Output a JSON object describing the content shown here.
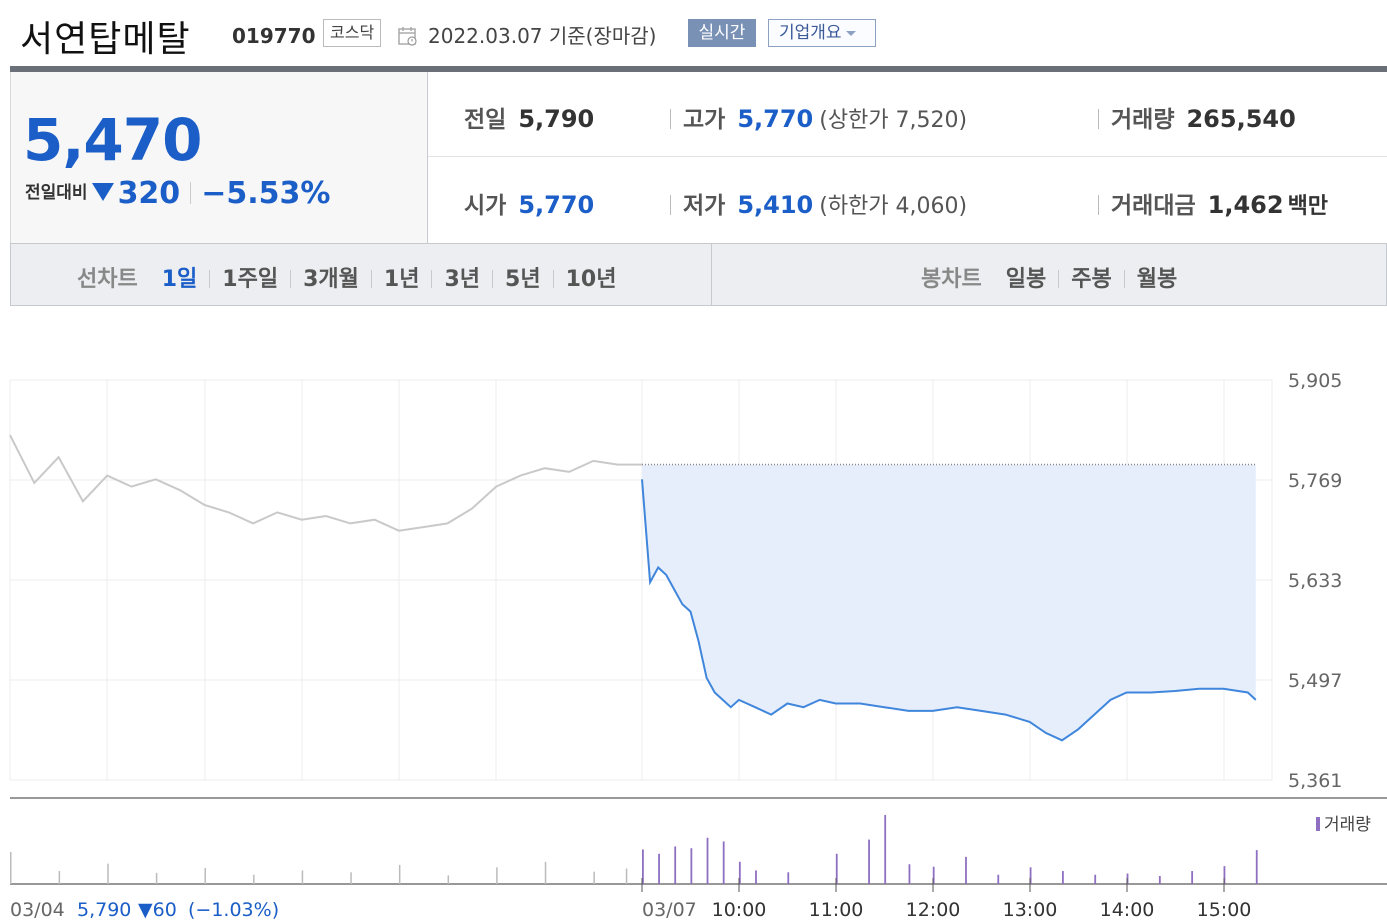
{
  "header": {
    "name": "서연탑메탈",
    "code": "019770",
    "market": "코스닥",
    "date": "2022.03.07  기준(장마감)",
    "realtime_label": "실시간",
    "company_label": "기업개요"
  },
  "summary": {
    "price": "5,470",
    "change_label": "전일대비",
    "change": "320",
    "change_rate": "−5.53%",
    "prev_close_label": "전일",
    "prev_close": "5,790",
    "high_label": "고가",
    "high": "5,770",
    "upper_limit": "(상한가 7,520)",
    "volume_label": "거래량",
    "volume": "265,540",
    "open_label": "시가",
    "open": "5,770",
    "low_label": "저가",
    "low": "5,410",
    "lower_limit": "(하한가 4,060)",
    "amount_label": "거래대금",
    "amount": "1,462",
    "amount_unit": "백만",
    "colors": {
      "down": "#1b5ec7",
      "fill": "#e6eefb",
      "today_line": "#3f86dc",
      "prev_line": "#c9c9c9",
      "volume_bar": "#8e6fc1"
    }
  },
  "tabs": {
    "line_title": "선차트",
    "line_items": [
      "1일",
      "1주일",
      "3개월",
      "1년",
      "3년",
      "5년",
      "10년"
    ],
    "line_active": "1일",
    "candle_title": "봉차트",
    "candle_items": [
      "일봉",
      "주봉",
      "월봉"
    ]
  },
  "chart_data": {
    "type": "line",
    "y_ticks": [
      "5,905",
      "5,769",
      "5,633",
      "5,497",
      "5,361"
    ],
    "ylim": [
      5361,
      5905
    ],
    "x_ticks": [
      "03/04",
      "03/07",
      "10:00",
      "11:00",
      "12:00",
      "13:00",
      "14:00",
      "15:00"
    ],
    "prev_day": {
      "date": "03/04",
      "close": "5,790",
      "change": "▼60",
      "change_rate": "(−1.03%)",
      "times": [
        "09:00",
        "09:15",
        "09:30",
        "09:45",
        "10:00",
        "10:15",
        "10:30",
        "10:45",
        "11:00",
        "11:15",
        "11:30",
        "11:45",
        "12:00",
        "12:15",
        "12:30",
        "12:45",
        "13:00",
        "13:15",
        "13:30",
        "13:45",
        "14:00",
        "14:15",
        "14:30",
        "14:45",
        "15:00",
        "15:15",
        "15:30"
      ],
      "values": [
        5830,
        5765,
        5800,
        5740,
        5775,
        5760,
        5770,
        5755,
        5735,
        5725,
        5710,
        5725,
        5715,
        5720,
        5710,
        5715,
        5700,
        5705,
        5710,
        5730,
        5760,
        5775,
        5785,
        5780,
        5795,
        5790,
        5790
      ]
    },
    "today": {
      "date": "03/07",
      "prev_close_ref": 5790,
      "times": [
        "09:00",
        "09:05",
        "09:10",
        "09:15",
        "09:20",
        "09:25",
        "09:30",
        "09:35",
        "09:40",
        "09:45",
        "09:50",
        "09:55",
        "10:00",
        "10:10",
        "10:20",
        "10:30",
        "10:40",
        "10:50",
        "11:00",
        "11:15",
        "11:30",
        "11:45",
        "12:00",
        "12:15",
        "12:30",
        "12:45",
        "13:00",
        "13:10",
        "13:20",
        "13:30",
        "13:40",
        "13:50",
        "14:00",
        "14:15",
        "14:30",
        "14:45",
        "15:00",
        "15:15",
        "15:20"
      ],
      "values": [
        5770,
        5630,
        5650,
        5640,
        5620,
        5600,
        5590,
        5550,
        5500,
        5480,
        5470,
        5460,
        5470,
        5460,
        5450,
        5465,
        5460,
        5470,
        5465,
        5465,
        5460,
        5455,
        5455,
        5460,
        5455,
        5450,
        5440,
        5425,
        5415,
        5430,
        5450,
        5470,
        5480,
        5480,
        5482,
        5485,
        5485,
        5480,
        5470
      ]
    },
    "volume": {
      "label": "거래량",
      "prev_times": [
        "09:00",
        "09:30",
        "10:00",
        "10:30",
        "11:00",
        "11:30",
        "12:00",
        "12:30",
        "13:00",
        "13:30",
        "14:00",
        "14:30",
        "15:00",
        "15:20"
      ],
      "prev_values": [
        5200,
        2100,
        3300,
        1800,
        2600,
        1500,
        2200,
        1900,
        3100,
        1400,
        2700,
        3600,
        2000,
        2500
      ],
      "today_times": [
        "09:00",
        "09:10",
        "09:20",
        "09:30",
        "09:40",
        "09:50",
        "10:00",
        "10:10",
        "10:30",
        "11:00",
        "11:20",
        "11:30",
        "11:45",
        "12:00",
        "12:20",
        "12:40",
        "13:00",
        "13:20",
        "13:40",
        "14:00",
        "14:20",
        "14:40",
        "15:00",
        "15:20"
      ],
      "today_values": [
        5600,
        4900,
        6100,
        5800,
        7500,
        6900,
        3600,
        2200,
        1900,
        4900,
        7200,
        11200,
        3200,
        2800,
        4400,
        1500,
        2700,
        2100,
        1500,
        1700,
        1300,
        2100,
        2900,
        5500
      ]
    }
  }
}
